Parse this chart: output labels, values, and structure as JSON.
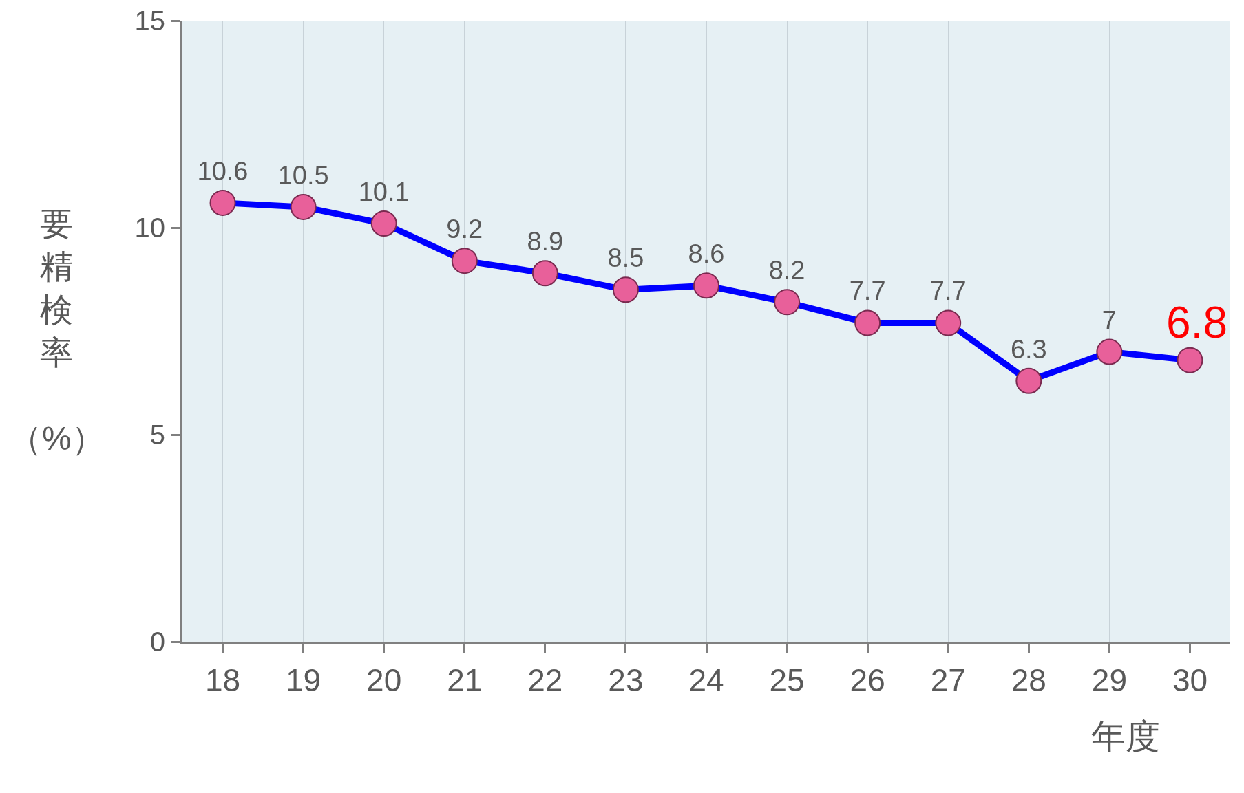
{
  "chart_data": {
    "type": "line",
    "xlabel": "年度",
    "ylabel": "要精検率（%）",
    "categories": [
      "18",
      "19",
      "20",
      "21",
      "22",
      "23",
      "24",
      "25",
      "26",
      "27",
      "28",
      "29",
      "30"
    ],
    "series": [
      {
        "color": "#0000ff",
        "values": [
          10.6,
          10.5,
          10.1,
          9.2,
          8.9,
          8.5,
          8.6,
          8.2,
          7.7,
          7.7,
          6.3,
          7,
          6.8
        ],
        "value_labels": [
          "10.6",
          "10.5",
          "10.1",
          "9.2",
          "8.9",
          "8.5",
          "8.6",
          "8.2",
          "7.7",
          "7.7",
          "6.3",
          "7",
          null
        ]
      }
    ],
    "annotations": [
      {
        "text": "6.8",
        "x": "30",
        "y": 6.8
      }
    ],
    "ylim": [
      0,
      15
    ],
    "yticks": [
      0,
      5,
      10,
      15
    ],
    "grid": "x",
    "marker": "circle",
    "line_style": "solid"
  }
}
